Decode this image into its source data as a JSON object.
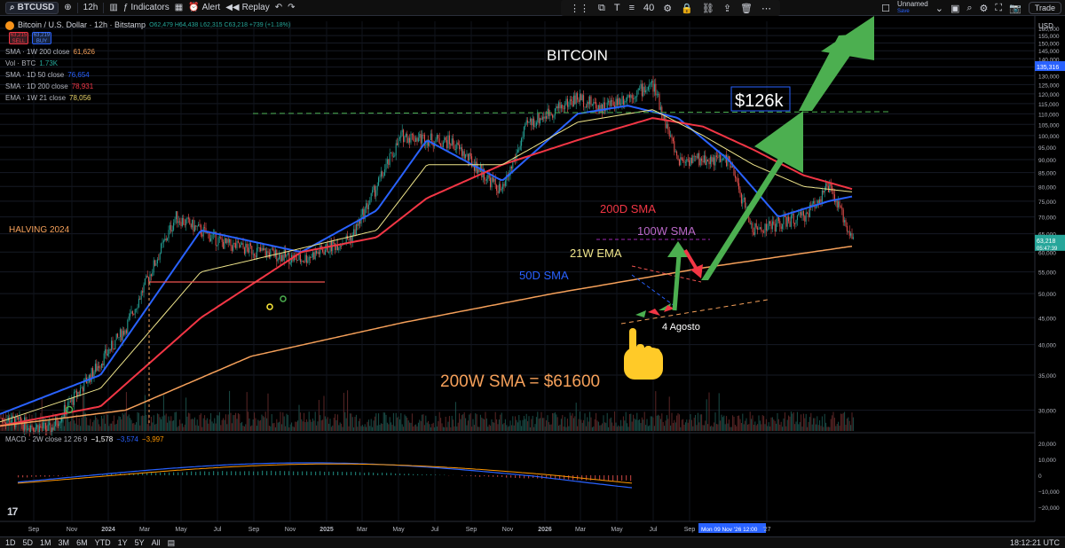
{
  "toolbar": {
    "symbol": "BTCUSD",
    "interval": "12h",
    "indicators": "Indicators",
    "alert": "Alert",
    "replay": "Replay",
    "brush_size": "40",
    "layout_name": "Unnamed",
    "layout_status": "Save",
    "trade": "Trade"
  },
  "legend": {
    "title": "Bitcoin / U.S. Dollar · 12h · Bitstamp",
    "ohlc": "O62,479 H64,438 L62,315 C63,218 +739 (+1.18%)",
    "sell_price": "63,215",
    "sell_label": "SELL",
    "buy_price": "63,219",
    "buy_label": "BUY",
    "indicators": [
      {
        "name": "SMA · 1W 200 close",
        "value": "61,626",
        "color": "#f5a05a"
      },
      {
        "name": "Vol · BTC",
        "value": "1.73K",
        "color": "#26a69a"
      },
      {
        "name": "SMA · 1D 50 close",
        "value": "76,654",
        "color": "#2962ff"
      },
      {
        "name": "SMA · 1D 200 close",
        "value": "78,931",
        "color": "#f23645"
      },
      {
        "name": "EMA · 1W 21 close",
        "value": "78,056",
        "color": "#e8d36a"
      }
    ],
    "macd": "MACD · 2W close 12 26 9",
    "macd_values": [
      "−1,578",
      "−3,574",
      "−3,997"
    ]
  },
  "colors": {
    "up": "#26a69a",
    "down": "#ef5350",
    "sma50d": "#2962ff",
    "sma200d": "#f23645",
    "ema21w": "#f0e68c",
    "sma200w": "#f5a05a",
    "sma100w": "#9c27b0",
    "target": "#4caf50",
    "macd_line": "#2962ff",
    "signal_line": "#ff9800"
  },
  "annotations": {
    "title": "BITCOIN",
    "target": "$126k",
    "halving": "HALVING 2024",
    "sma200d": "200D SMA",
    "sma100w": "100W SMA",
    "ema21w": "21W EMA",
    "sma50d": "50D SMA",
    "date_note": "4 Agosto",
    "sma200w": "200W SMA = $61600",
    "pointer_icon": "pointing-hand-icon"
  },
  "chart_data": {
    "type": "line",
    "title": "BITCOIN",
    "xlabel": "",
    "ylabel": "",
    "y_scale": "log",
    "ylim": [
      27500,
      165000
    ],
    "x_ticks": [
      "Sep",
      "Nov",
      "2024",
      "Mar",
      "May",
      "Jul",
      "Sep",
      "Nov",
      "2025",
      "Mar",
      "May",
      "Jul",
      "Sep",
      "Nov",
      "2026",
      "Mar",
      "May",
      "Jul",
      "Sep",
      "Mon 09 Nov '26  12:00",
      "'27"
    ],
    "y_ticks": [
      30000,
      35000,
      40000,
      45000,
      50000,
      55000,
      60000,
      65000,
      70000,
      75000,
      80000,
      85000,
      90000,
      95000,
      100000,
      105000,
      110000,
      115000,
      120000,
      125000,
      130000,
      135000,
      140000,
      145000,
      150000,
      155000,
      160000
    ],
    "y_tick_labels": [
      "30,000",
      "35,000",
      "40,000",
      "45,000",
      "50,000",
      "55,000",
      "60,000",
      "65,000",
      "70,000",
      "75,000",
      "80,000",
      "85,000",
      "90,000",
      "95,000",
      "100,000",
      "105,000",
      "110,000",
      "115,000",
      "120,000",
      "125,000",
      "130,000",
      "135,000",
      "140,000",
      "145,000",
      "150,000",
      "155,000",
      "160,000"
    ],
    "axis_currency": "USD",
    "price_labels": [
      {
        "value": 135316,
        "label": "135,316",
        "color": "#2962ff"
      },
      {
        "value": 63218,
        "label": "63,218",
        "sub": "05:47:39",
        "color": "#26a69a"
      }
    ],
    "series": [
      {
        "name": "BTCUSD",
        "x": [
          "2023-08",
          "2023-10",
          "2024-01",
          "2024-03",
          "2024-05",
          "2024-08",
          "2024-10",
          "2024-12",
          "2025-02",
          "2025-04",
          "2025-05",
          "2025-07",
          "2025-08",
          "2025-10",
          "2025-11",
          "2026-01",
          "2026-02",
          "2026-04",
          "2026-05",
          "2026-06"
        ],
        "values": [
          29000,
          27500,
          43000,
          70000,
          62000,
          58000,
          64000,
          100000,
          97000,
          78000,
          105000,
          118000,
          113000,
          125000,
          90000,
          90000,
          66000,
          70000,
          80000,
          63218
        ]
      },
      {
        "name": "SMA · 1D 50 close",
        "x": [
          "2023-08",
          "2023-12",
          "2024-04",
          "2024-08",
          "2024-11",
          "2025-01",
          "2025-04",
          "2025-07",
          "2025-09",
          "2025-11",
          "2026-01",
          "2026-03",
          "2026-05",
          "2026-06"
        ],
        "values": [
          29500,
          35000,
          66000,
          60000,
          72000,
          98000,
          82000,
          110000,
          114000,
          108000,
          90000,
          70000,
          75000,
          76654
        ]
      },
      {
        "name": "SMA · 1D 200 close",
        "x": [
          "2023-08",
          "2023-12",
          "2024-04",
          "2024-08",
          "2024-11",
          "2025-01",
          "2025-04",
          "2025-07",
          "2025-10",
          "2025-12",
          "2026-02",
          "2026-04",
          "2026-06"
        ],
        "values": [
          28000,
          30500,
          45000,
          60000,
          64000,
          76000,
          88000,
          98000,
          108000,
          104000,
          94000,
          84000,
          78931
        ]
      },
      {
        "name": "EMA · 1W 21 close",
        "x": [
          "2023-08",
          "2023-12",
          "2024-04",
          "2024-08",
          "2024-11",
          "2025-01",
          "2025-04",
          "2025-07",
          "2025-10",
          "2025-12",
          "2026-02",
          "2026-04",
          "2026-06"
        ],
        "values": [
          28500,
          33000,
          55000,
          61000,
          66000,
          88000,
          88000,
          106000,
          112000,
          100000,
          88000,
          80000,
          78056
        ]
      },
      {
        "name": "SMA · 1W 200 close",
        "x": [
          "2023-08",
          "2024-01",
          "2024-06",
          "2024-12",
          "2025-06",
          "2025-12",
          "2026-06"
        ],
        "values": [
          28000,
          30000,
          38000,
          44000,
          50000,
          56000,
          61626
        ]
      }
    ],
    "projection": [
      {
        "x": "2026-06",
        "value": 63218
      },
      {
        "x": "2026-08",
        "value": 86000
      },
      {
        "x": "2026-09",
        "value": 76000
      },
      {
        "x": "2026-11",
        "value": 126000
      }
    ]
  }
}
